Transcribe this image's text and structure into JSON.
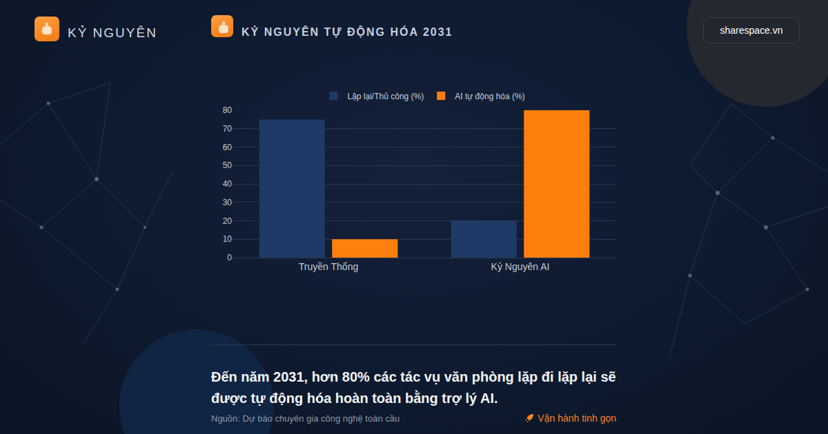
{
  "header": {
    "brand": "KỶ NGUYÊN",
    "title": "KỶ NGUYÊN TỰ ĐỘNG HÓA 2031",
    "site": "sharespace.vn"
  },
  "chart_data": {
    "type": "bar",
    "categories": [
      "Truyền Thống",
      "Kỷ Nguyên AI"
    ],
    "series": [
      {
        "name": "Lặp lại/Thủ công (%)",
        "color": "#1e3a66",
        "values": [
          75,
          20
        ]
      },
      {
        "name": "AI tự động hóa (%)",
        "color": "#ff7f0e",
        "values": [
          10,
          80
        ]
      }
    ],
    "ylim": [
      0,
      80
    ],
    "yticks": [
      0,
      10,
      20,
      30,
      40,
      50,
      60,
      70,
      80
    ],
    "grid": true,
    "legend": "top"
  },
  "footer": {
    "statement": "Đến năm 2031, hơn 80% các tác vụ văn phòng lặp đi lặp lại sẽ được tự động hóa hoàn toàn bằng trợ lý AI.",
    "source": "Nguồn: Dự báo chuyên gia công nghệ toàn cầu",
    "tag": "Vận hành tinh gọn"
  }
}
